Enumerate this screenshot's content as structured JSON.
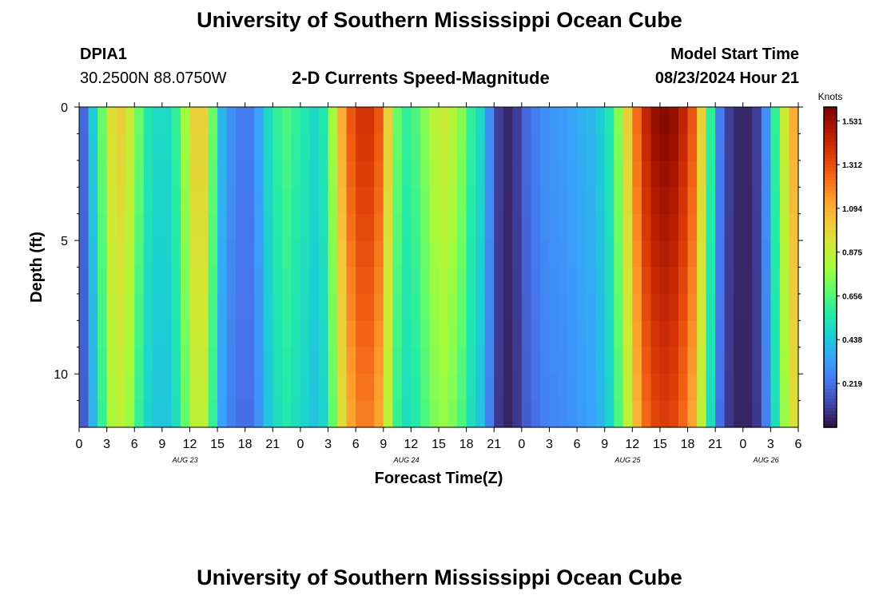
{
  "header": {
    "title": "University of Southern Mississippi Ocean Cube",
    "station_id": "DPIA1",
    "coordinates": "30.2500N  88.0750W",
    "subtitle": "2-D Currents Speed-Magnitude",
    "model_start_label": "Model Start Time",
    "model_start_value": "08/23/2024 Hour 21"
  },
  "footer": {
    "title": "University of Southern Mississippi Ocean Cube"
  },
  "chart_data": {
    "type": "heatmap",
    "title": "2-D Currents Speed-Magnitude",
    "xlabel": "Forecast Time(Z)",
    "ylabel": "Depth (ft)",
    "x_unit": "hours since 08/23 00Z",
    "x_range": [
      0,
      78
    ],
    "y_range": [
      0,
      12
    ],
    "x_tick_labels": [
      "0",
      "3",
      "6",
      "9",
      "12",
      "15",
      "18",
      "21",
      "0",
      "3",
      "6",
      "9",
      "12",
      "15",
      "18",
      "21",
      "0",
      "3",
      "6",
      "9",
      "12",
      "15",
      "18",
      "21",
      "0",
      "3",
      "6"
    ],
    "y_ticks": [
      0,
      5,
      10
    ],
    "y_tick_labels": [
      "0",
      "5",
      "10"
    ],
    "date_labels": [
      {
        "text": "AUG 23",
        "hour": 11.5
      },
      {
        "text": "AUG 24",
        "hour": 35.5
      },
      {
        "text": "AUG 25",
        "hour": 59.5
      },
      {
        "text": "AUG 26",
        "hour": 74.5
      }
    ],
    "colorbar": {
      "unit": "Knots",
      "min": 0.0,
      "max": 1.6,
      "tick_labels": [
        "1.531",
        "1.312",
        "1.094",
        "0.875",
        "0.656",
        "0.438",
        "0.219"
      ],
      "tick_values": [
        1.531,
        1.312,
        1.094,
        0.875,
        0.656,
        0.438,
        0.219
      ],
      "colors": [
        "#30123b",
        "#4145ab",
        "#4675ed",
        "#39a2fc",
        "#1bcfd4",
        "#24eca6",
        "#61fc6c",
        "#a4fc3b",
        "#d1e834",
        "#f3c63a",
        "#fe9b2d",
        "#f36315",
        "#d93806",
        "#b11901",
        "#7a0402"
      ]
    },
    "time_speed_knots": [
      {
        "hour": 0,
        "speed": 0.2
      },
      {
        "hour": 1,
        "speed": 0.45
      },
      {
        "hour": 2,
        "speed": 0.7
      },
      {
        "hour": 3,
        "speed": 0.95
      },
      {
        "hour": 4,
        "speed": 1.0
      },
      {
        "hour": 5,
        "speed": 0.9
      },
      {
        "hour": 6,
        "speed": 0.7
      },
      {
        "hour": 7,
        "speed": 0.55
      },
      {
        "hour": 8,
        "speed": 0.5
      },
      {
        "hour": 9,
        "speed": 0.5
      },
      {
        "hour": 10,
        "speed": 0.6
      },
      {
        "hour": 11,
        "speed": 0.8
      },
      {
        "hour": 12,
        "speed": 1.0
      },
      {
        "hour": 13,
        "speed": 1.0
      },
      {
        "hour": 14,
        "speed": 0.7
      },
      {
        "hour": 15,
        "speed": 0.4
      },
      {
        "hour": 16,
        "speed": 0.3
      },
      {
        "hour": 17,
        "speed": 0.25
      },
      {
        "hour": 18,
        "speed": 0.25
      },
      {
        "hour": 19,
        "speed": 0.35
      },
      {
        "hour": 20,
        "speed": 0.5
      },
      {
        "hour": 21,
        "speed": 0.6
      },
      {
        "hour": 22,
        "speed": 0.65
      },
      {
        "hour": 23,
        "speed": 0.6
      },
      {
        "hour": 24,
        "speed": 0.55
      },
      {
        "hour": 25,
        "speed": 0.5
      },
      {
        "hour": 26,
        "speed": 0.55
      },
      {
        "hour": 27,
        "speed": 0.8
      },
      {
        "hour": 28,
        "speed": 1.1
      },
      {
        "hour": 29,
        "speed": 1.3
      },
      {
        "hour": 30,
        "speed": 1.4
      },
      {
        "hour": 31,
        "speed": 1.4
      },
      {
        "hour": 32,
        "speed": 1.3
      },
      {
        "hour": 33,
        "speed": 1.0
      },
      {
        "hour": 34,
        "speed": 0.7
      },
      {
        "hour": 35,
        "speed": 0.6
      },
      {
        "hour": 36,
        "speed": 0.65
      },
      {
        "hour": 37,
        "speed": 0.75
      },
      {
        "hour": 38,
        "speed": 0.85
      },
      {
        "hour": 39,
        "speed": 0.9
      },
      {
        "hour": 40,
        "speed": 0.85
      },
      {
        "hour": 41,
        "speed": 0.75
      },
      {
        "hour": 42,
        "speed": 0.6
      },
      {
        "hour": 43,
        "speed": 0.5
      },
      {
        "hour": 44,
        "speed": 0.3
      },
      {
        "hour": 45,
        "speed": 0.1
      },
      {
        "hour": 46,
        "speed": 0.05
      },
      {
        "hour": 47,
        "speed": 0.1
      },
      {
        "hour": 48,
        "speed": 0.2
      },
      {
        "hour": 49,
        "speed": 0.25
      },
      {
        "hour": 50,
        "speed": 0.3
      },
      {
        "hour": 51,
        "speed": 0.32
      },
      {
        "hour": 52,
        "speed": 0.33
      },
      {
        "hour": 53,
        "speed": 0.35
      },
      {
        "hour": 54,
        "speed": 0.38
      },
      {
        "hour": 55,
        "speed": 0.4
      },
      {
        "hour": 56,
        "speed": 0.45
      },
      {
        "hour": 57,
        "speed": 0.55
      },
      {
        "hour": 58,
        "speed": 0.75
      },
      {
        "hour": 59,
        "speed": 1.0
      },
      {
        "hour": 60,
        "speed": 1.25
      },
      {
        "hour": 61,
        "speed": 1.45
      },
      {
        "hour": 62,
        "speed": 1.55
      },
      {
        "hour": 63,
        "speed": 1.58
      },
      {
        "hour": 64,
        "speed": 1.55
      },
      {
        "hour": 65,
        "speed": 1.45
      },
      {
        "hour": 66,
        "speed": 1.3
      },
      {
        "hour": 67,
        "speed": 1.0
      },
      {
        "hour": 68,
        "speed": 0.6
      },
      {
        "hour": 69,
        "speed": 0.25
      },
      {
        "hour": 70,
        "speed": 0.1
      },
      {
        "hour": 71,
        "speed": 0.05
      },
      {
        "hour": 72,
        "speed": 0.05
      },
      {
        "hour": 73,
        "speed": 0.1
      },
      {
        "hour": 74,
        "speed": 0.3
      },
      {
        "hour": 75,
        "speed": 0.6
      },
      {
        "hour": 76,
        "speed": 0.9
      },
      {
        "hour": 77,
        "speed": 1.1
      }
    ]
  }
}
